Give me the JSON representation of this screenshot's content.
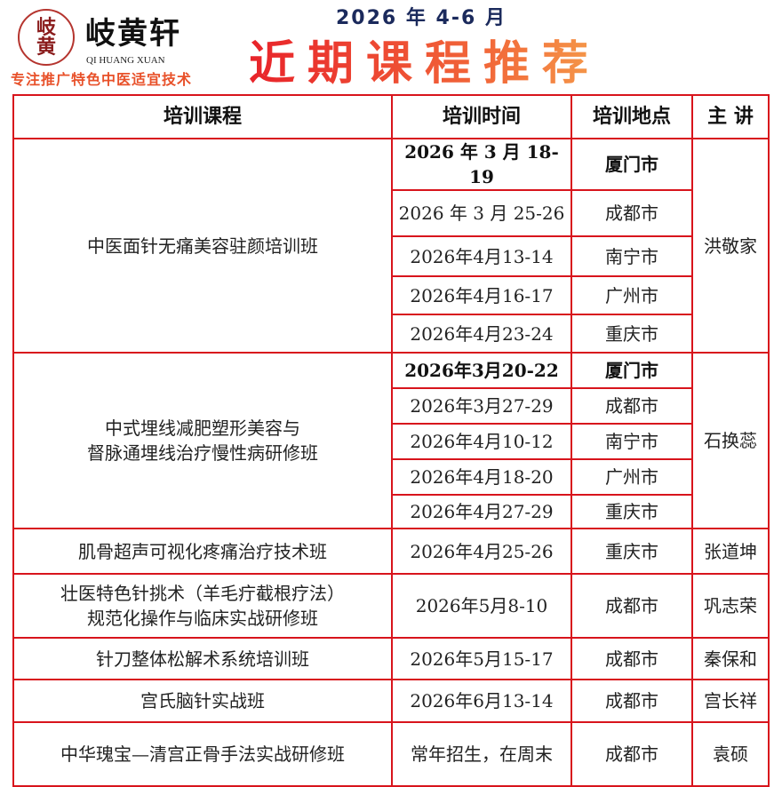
{
  "header": {
    "logo_text": "岐黄轩",
    "brand": "岐黄轩",
    "brand_en": "QI HUANG XUAN",
    "slogan": "专注推广特色中医适宜技术",
    "period": "2026 年 4-6 月",
    "title": "近期课程推荐",
    "title_gradient": [
      "#e8232a",
      "#f59a4a"
    ],
    "border_color": "#d8141c"
  },
  "table": {
    "columns": [
      "培训课程",
      "培训时间",
      "培训地点",
      "主 讲"
    ],
    "groups": [
      {
        "course": "中医面针无痛美容驻颜培训班",
        "instructor": "洪敬家",
        "sessions": [
          {
            "date": "2026 年 3 月 18-19",
            "place": "厦门市"
          },
          {
            "date": "2026 年 3 月 25-26",
            "place": "成都市"
          },
          {
            "date": "2026年4月13-14",
            "place": "南宁市"
          },
          {
            "date": "2026年4月16-17",
            "place": "广州市"
          },
          {
            "date": "2026年4月23-24",
            "place": "重庆市"
          }
        ]
      },
      {
        "course": "中式埋线减肥塑形美容与\n督脉通埋线治疗慢性病研修班",
        "instructor": "石换蕊",
        "sessions": [
          {
            "date": "2026年3月20-22",
            "place": "厦门市"
          },
          {
            "date": "2026年3月27-29",
            "place": "成都市"
          },
          {
            "date": "2026年4月10-12",
            "place": "南宁市"
          },
          {
            "date": "2026年4月18-20",
            "place": "广州市"
          },
          {
            "date": "2026年4月27-29",
            "place": "重庆市"
          }
        ]
      },
      {
        "course": "肌骨超声可视化疼痛治疗技术班",
        "instructor": "张道坤",
        "sessions": [
          {
            "date": "2026年4月25-26",
            "place": "重庆市"
          }
        ]
      },
      {
        "course": "壮医特色针挑术（羊毛疔截根疗法）\n规范化操作与临床实战研修班",
        "instructor": "巩志荣",
        "sessions": [
          {
            "date": "2026年5月8-10",
            "place": "成都市"
          }
        ]
      },
      {
        "course": "针刀整体松解术系统培训班",
        "instructor": "秦保和",
        "sessions": [
          {
            "date": "2026年5月15-17",
            "place": "成都市"
          }
        ]
      },
      {
        "course": "宫氏脑针实战班",
        "instructor": "宫长祥",
        "sessions": [
          {
            "date": "2026年6月13-14",
            "place": "成都市"
          }
        ]
      },
      {
        "course": "中华瑰宝—清宫正骨手法实战研修班",
        "instructor": "袁硕",
        "sessions": [
          {
            "date": "常年招生，在周末",
            "place": "成都市"
          }
        ]
      }
    ]
  }
}
